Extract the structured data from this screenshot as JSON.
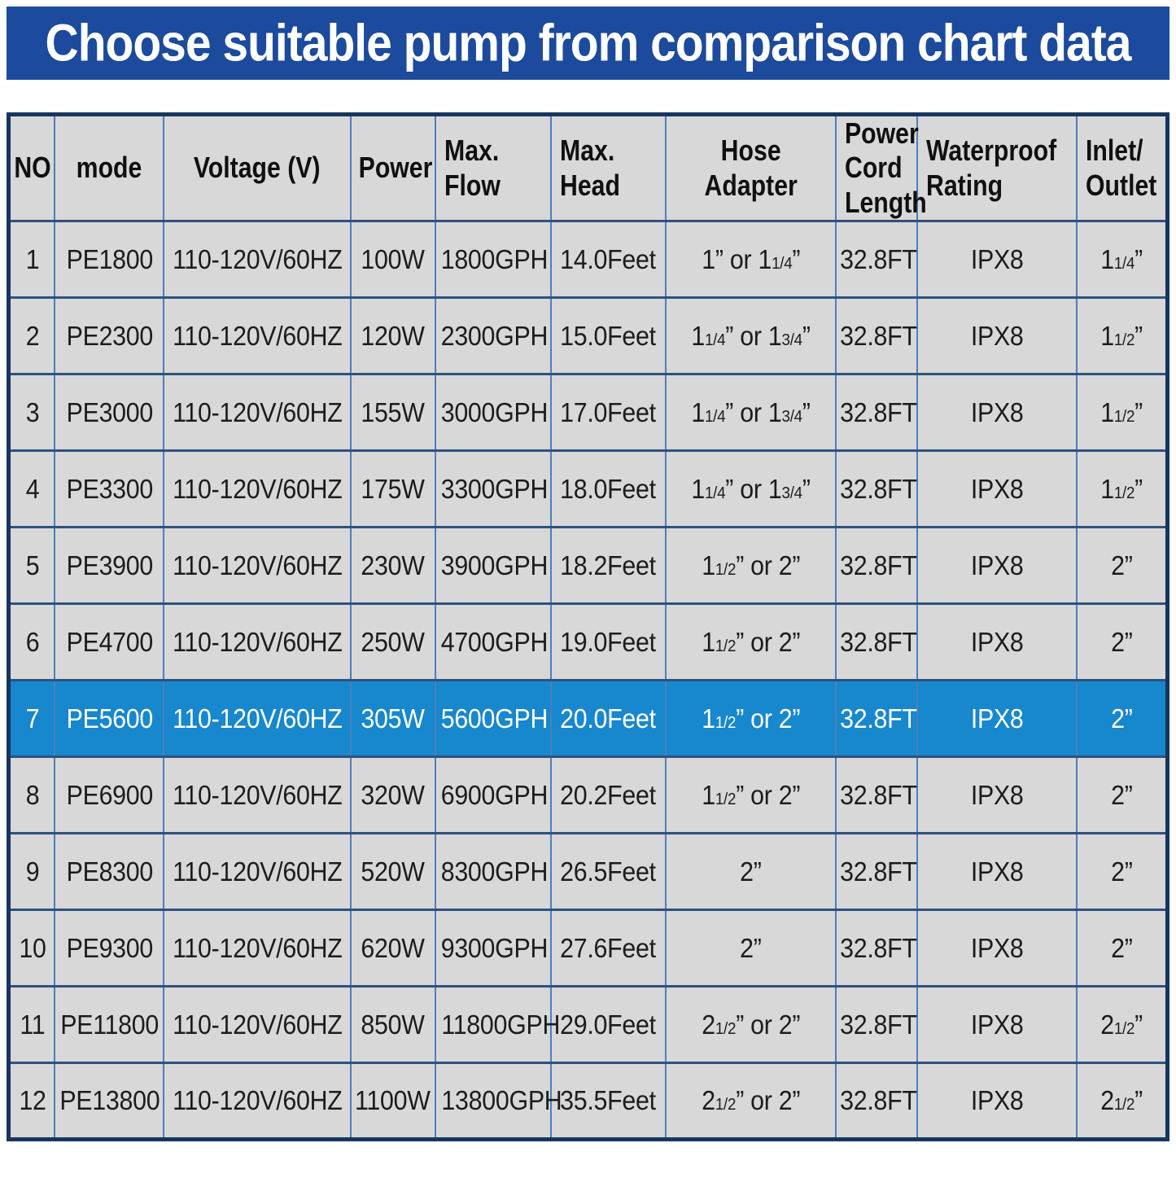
{
  "title": "Choose suitable pump from comparison chart data",
  "colors": {
    "banner_bg": "#1c4a9c",
    "banner_text": "#ffffff",
    "outer_border": "#17365d",
    "h_border": "#2e5180",
    "v_border": "#4d7fb8",
    "cell_bg": "#d8d8d8",
    "highlight_bg": "#1787ce",
    "highlight_text": "#ffffff",
    "body_text": "#1c1c1c"
  },
  "chart_data": {
    "type": "table",
    "title": "Choose suitable pump from comparison chart data",
    "columns": [
      "NO",
      "mode",
      "Voltage (V)",
      "Power",
      "Max.\nFlow",
      "Max.\nHead",
      "Hose Adapter",
      "Power\nCord\nLength",
      "Waterproof\nRating",
      "Inlet/\nOutlet"
    ],
    "column_align": [
      "center",
      "center",
      "center",
      "center",
      "left",
      "left",
      "center",
      "left",
      "left",
      "left"
    ],
    "highlighted_row_no": "7",
    "rows": [
      [
        "1",
        "PE1800",
        "110-120V/60HZ",
        "100W",
        "1800GPH",
        "14.0Feet",
        "1” or 1{1/4}”",
        "32.8FT",
        "IPX8",
        "1{1/4}”"
      ],
      [
        "2",
        "PE2300",
        "110-120V/60HZ",
        "120W",
        "2300GPH",
        "15.0Feet",
        "1{1/4}” or 1{3/4}”",
        "32.8FT",
        "IPX8",
        "1{1/2}”"
      ],
      [
        "3",
        "PE3000",
        "110-120V/60HZ",
        "155W",
        "3000GPH",
        "17.0Feet",
        "1{1/4}” or 1{3/4}”",
        "32.8FT",
        "IPX8",
        "1{1/2}”"
      ],
      [
        "4",
        "PE3300",
        "110-120V/60HZ",
        "175W",
        "3300GPH",
        "18.0Feet",
        "1{1/4}” or 1{3/4}”",
        "32.8FT",
        "IPX8",
        "1{1/2}”"
      ],
      [
        "5",
        "PE3900",
        "110-120V/60HZ",
        "230W",
        "3900GPH",
        "18.2Feet",
        "1{1/2}” or 2”",
        "32.8FT",
        "IPX8",
        "2”"
      ],
      [
        "6",
        "PE4700",
        "110-120V/60HZ",
        "250W",
        "4700GPH",
        "19.0Feet",
        "1{1/2}” or 2”",
        "32.8FT",
        "IPX8",
        "2”"
      ],
      [
        "7",
        "PE5600",
        "110-120V/60HZ",
        "305W",
        "5600GPH",
        "20.0Feet",
        "1{1/2}” or 2”",
        "32.8FT",
        "IPX8",
        "2”"
      ],
      [
        "8",
        "PE6900",
        "110-120V/60HZ",
        "320W",
        "6900GPH",
        "20.2Feet",
        "1{1/2}” or 2”",
        "32.8FT",
        "IPX8",
        "2”"
      ],
      [
        "9",
        "PE8300",
        "110-120V/60HZ",
        "520W",
        "8300GPH",
        "26.5Feet",
        "2”",
        "32.8FT",
        "IPX8",
        "2”"
      ],
      [
        "10",
        "PE9300",
        "110-120V/60HZ",
        "620W",
        "9300GPH",
        "27.6Feet",
        "2”",
        "32.8FT",
        "IPX8",
        "2”"
      ],
      [
        "11",
        "PE11800",
        "110-120V/60HZ",
        "850W",
        "11800GPH",
        "29.0Feet",
        "2{1/2}” or 2”",
        "32.8FT",
        "IPX8",
        "2{1/2}”"
      ],
      [
        "12",
        "PE13800",
        "110-120V/60HZ",
        "1100W",
        "13800GPH",
        "35.5Feet",
        "2{1/2}” or 2”",
        "32.8FT",
        "IPX8",
        "2{1/2}”"
      ]
    ]
  }
}
